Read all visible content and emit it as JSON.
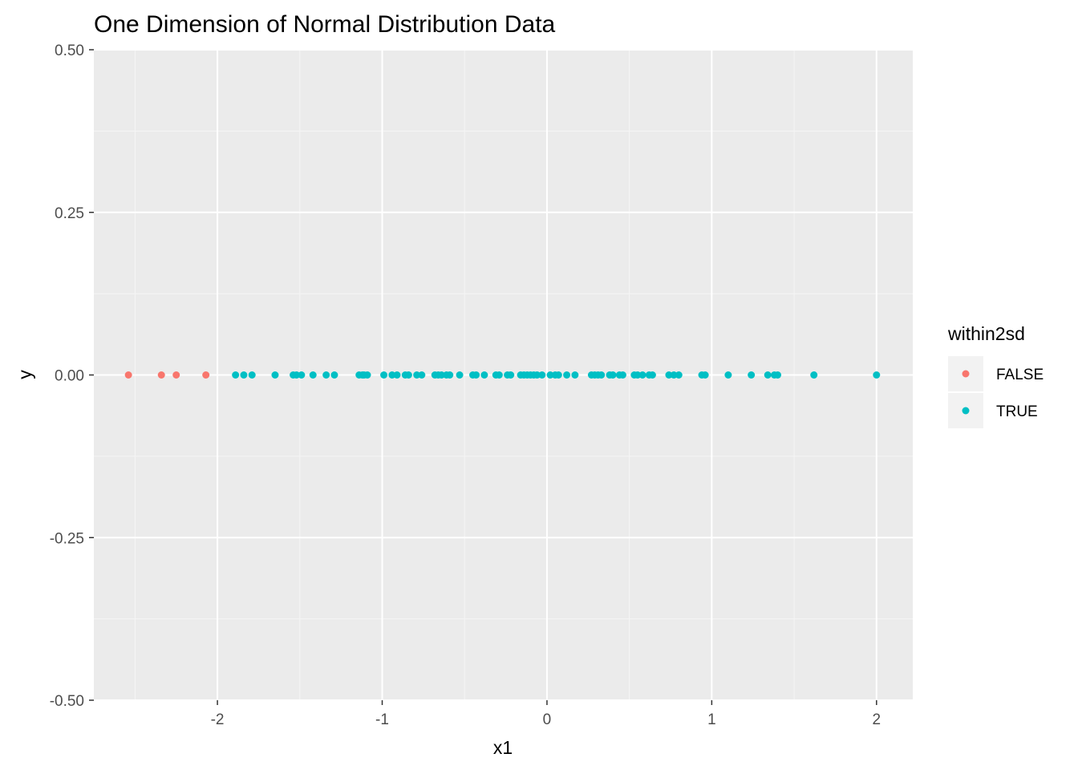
{
  "chart_data": {
    "type": "scatter",
    "title": "One Dimension of Normal Distribution Data",
    "xlabel": "x1",
    "ylabel": "y",
    "xlim": [
      -2.75,
      2.22
    ],
    "ylim": [
      -0.5,
      0.5
    ],
    "x_ticks": [
      -2,
      -1,
      0,
      1,
      2
    ],
    "x_tick_labels": [
      "-2",
      "-1",
      "0",
      "1",
      "2"
    ],
    "y_ticks": [
      -0.5,
      -0.25,
      0,
      0.25,
      0.5
    ],
    "y_tick_labels": [
      "-0.50",
      "-0.25",
      "0.00",
      "0.25",
      "0.50"
    ],
    "grid": true,
    "legend": {
      "title": "within2sd",
      "position": "right"
    },
    "series": [
      {
        "name": "FALSE",
        "color": "#F8766D",
        "x": [
          -2.54,
          -2.34,
          -2.25,
          -2.07
        ],
        "y": [
          0,
          0,
          0,
          0
        ]
      },
      {
        "name": "TRUE",
        "color": "#00BFC4",
        "x": [
          -1.89,
          -1.84,
          -1.79,
          -1.65,
          -1.54,
          -1.52,
          -1.49,
          -1.42,
          -1.34,
          -1.29,
          -1.14,
          -1.12,
          -1.11,
          -1.09,
          -0.99,
          -0.94,
          -0.91,
          -0.86,
          -0.84,
          -0.79,
          -0.76,
          -0.68,
          -0.66,
          -0.64,
          -0.61,
          -0.59,
          -0.53,
          -0.45,
          -0.43,
          -0.38,
          -0.31,
          -0.29,
          -0.24,
          -0.22,
          -0.16,
          -0.14,
          -0.12,
          -0.1,
          -0.08,
          -0.06,
          -0.03,
          0.02,
          0.05,
          0.07,
          0.12,
          0.17,
          0.27,
          0.29,
          0.31,
          0.33,
          0.38,
          0.4,
          0.44,
          0.46,
          0.53,
          0.55,
          0.58,
          0.62,
          0.64,
          0.74,
          0.77,
          0.8,
          0.94,
          0.96,
          1.1,
          1.24,
          1.34,
          1.38,
          1.4,
          1.62,
          2.0
        ],
        "y": [
          0,
          0,
          0,
          0,
          0,
          0,
          0,
          0,
          0,
          0,
          0,
          0,
          0,
          0,
          0,
          0,
          0,
          0,
          0,
          0,
          0,
          0,
          0,
          0,
          0,
          0,
          0,
          0,
          0,
          0,
          0,
          0,
          0,
          0,
          0,
          0,
          0,
          0,
          0,
          0,
          0,
          0,
          0,
          0,
          0,
          0,
          0,
          0,
          0,
          0,
          0,
          0,
          0,
          0,
          0,
          0,
          0,
          0,
          0,
          0,
          0,
          0,
          0,
          0,
          0,
          0,
          0,
          0,
          0,
          0,
          0
        ]
      }
    ]
  }
}
